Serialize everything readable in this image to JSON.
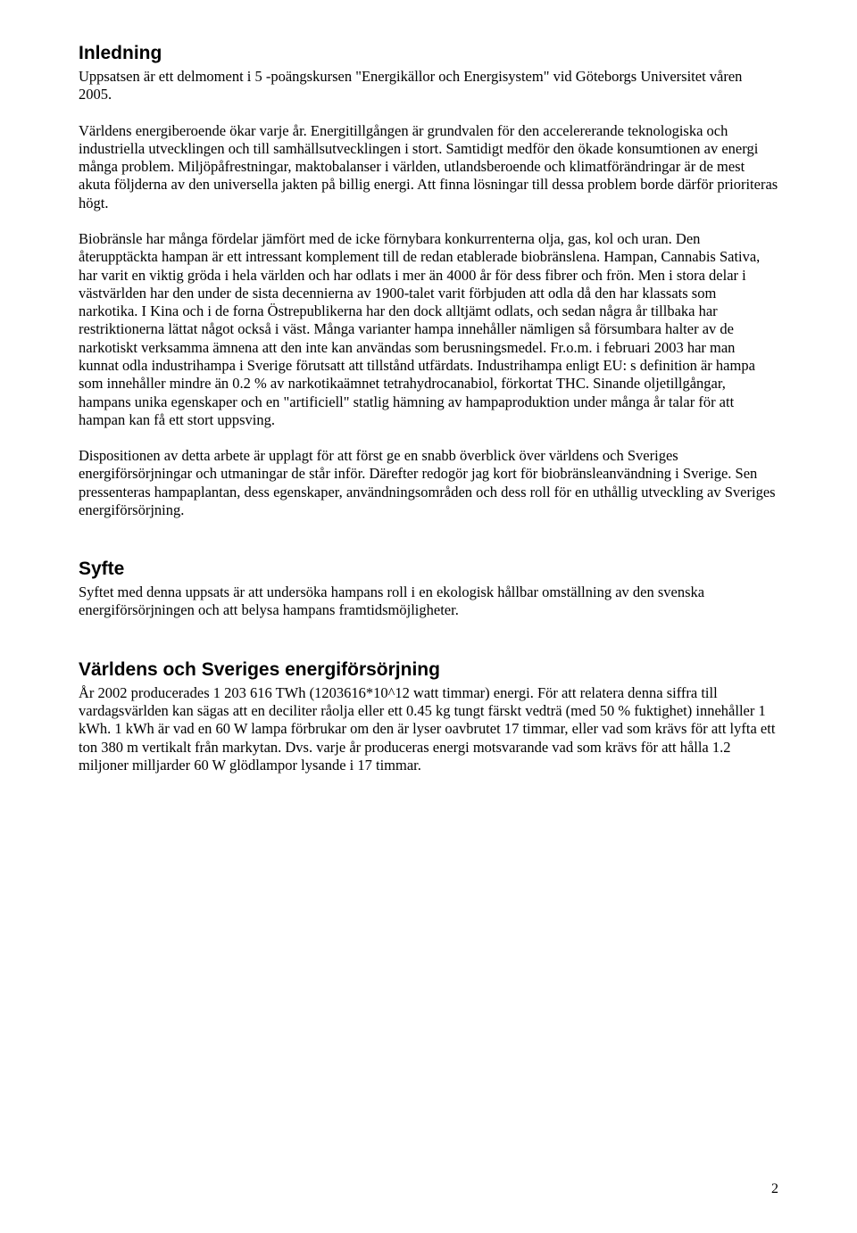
{
  "page": {
    "number": "2"
  },
  "section1": {
    "heading": "Inledning",
    "p1": "Uppsatsen är ett delmoment i 5 -poängskursen \"Energikällor och Energisystem\" vid Göteborgs Universitet våren 2005.",
    "p2": "Världens energiberoende ökar varje år. Energitillgången är grundvalen för den accelererande teknologiska och industriella utvecklingen och till samhällsutvecklingen i stort. Samtidigt medför den ökade konsumtionen av energi många problem. Miljöpåfrestningar, maktobalanser i världen, utlandsberoende och klimatförändringar är de mest akuta följderna av den universella jakten på billig energi. Att finna lösningar till dessa problem borde därför prioriteras högt.",
    "p3": "Biobränsle har många fördelar jämfört med de icke förnybara konkurrenterna olja, gas, kol och uran. Den återupptäckta hampan är ett intressant komplement till de redan etablerade biobränslena. Hampan, Cannabis Sativa, har varit en viktig gröda i hela världen och har odlats i mer än 4000 år för dess fibrer och frön. Men i stora delar i västvärlden har den under de sista decennierna av 1900-talet varit förbjuden att odla då den har klassats som narkotika. I Kina och i de forna Östrepublikerna har den dock alltjämt odlats, och sedan några år tillbaka har restriktionerna lättat något också i väst. Många varianter hampa innehåller nämligen så försumbara halter av de narkotiskt verksamma ämnena att den inte kan användas som berusningsmedel. Fr.o.m. i februari 2003 har man kunnat odla industrihampa i Sverige förutsatt att tillstånd utfärdats. Industrihampa enligt EU: s definition är hampa som innehåller mindre än 0.2 % av narkotikaämnet tetrahydrocanabiol, förkortat THC. Sinande oljetillgångar, hampans unika egenskaper och en \"artificiell\" statlig hämning av hampaproduktion under många år talar för att hampan kan få ett stort uppsving.",
    "p4": "Dispositionen av detta arbete är upplagt för att först ge en snabb överblick över världens och Sveriges energiförsörjningar och utmaningar de står inför. Därefter redogör jag kort för biobränsleanvändning i Sverige. Sen pressenteras hampaplantan, dess egenskaper, användningsområden och dess roll för en uthållig utveckling av Sveriges energiförsörjning."
  },
  "section2": {
    "heading": "Syfte",
    "p1": "Syftet med denna uppsats är att undersöka hampans roll i en ekologisk hållbar omställning av den svenska energiförsörjningen och att belysa hampans framtidsmöjligheter."
  },
  "section3": {
    "heading": "Världens och Sveriges energiförsörjning",
    "p1": "År 2002 producerades 1 203 616 TWh (1203616*10^12 watt timmar) energi. För att relatera denna siffra till vardagsvärlden kan sägas att en deciliter råolja eller ett 0.45 kg tungt färskt vedträ (med 50 % fuktighet) innehåller 1 kWh. 1 kWh är vad en 60 W lampa förbrukar om den är lyser oavbrutet 17 timmar, eller vad som krävs för att lyfta ett ton 380 m vertikalt från markytan. Dvs. varje år produceras energi motsvarande vad som krävs för att hålla 1.2 miljoner milljarder 60 W glödlampor lysande i 17 timmar."
  }
}
